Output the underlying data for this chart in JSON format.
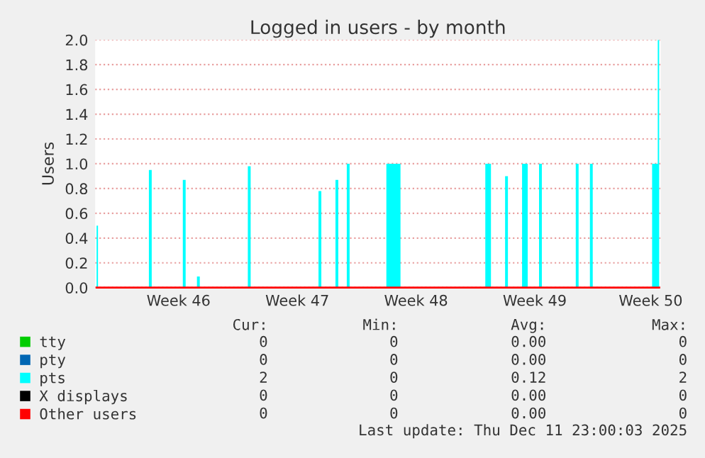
{
  "chart_data": {
    "type": "area",
    "title": "Logged in users - by month",
    "ylabel": "Users",
    "categories": [
      null,
      null,
      null,
      null,
      null,
      null,
      null,
      null,
      null,
      null,
      null,
      null,
      null,
      null,
      null,
      null,
      null,
      null,
      null,
      null,
      null,
      null,
      null,
      null,
      null,
      null,
      null,
      null,
      null,
      "Week 46",
      null,
      null,
      null,
      null,
      null,
      null,
      null,
      null,
      null,
      null,
      null,
      null,
      null,
      null,
      null,
      null,
      null,
      null,
      null,
      null,
      null,
      null,
      null,
      null,
      null,
      null,
      null,
      null,
      null,
      null,
      null,
      null,
      null,
      null,
      null,
      null,
      null,
      null,
      null,
      null,
      null,
      "Week 47",
      null,
      null,
      null,
      null,
      null,
      null,
      null,
      null,
      null,
      null,
      null,
      null,
      null,
      null,
      null,
      null,
      null,
      null,
      null,
      null,
      null,
      null,
      null,
      null,
      null,
      null,
      null,
      null,
      null,
      null,
      null,
      null,
      null,
      null,
      null,
      null,
      null,
      null,
      null,
      null,
      null,
      "Week 48",
      null,
      null,
      null,
      null,
      null,
      null,
      null,
      null,
      null,
      null,
      null,
      null,
      null,
      null,
      null,
      null,
      null,
      null,
      null,
      null,
      null,
      null,
      null,
      null,
      null,
      null,
      null,
      null,
      null,
      null,
      null,
      null,
      null,
      null,
      null,
      null,
      null,
      null,
      null,
      null,
      null,
      "Week 49",
      null,
      null,
      null,
      null,
      null,
      null,
      null,
      null,
      null,
      null,
      null,
      null,
      null,
      null,
      null,
      null,
      null,
      null,
      null,
      null,
      null,
      null,
      null,
      null,
      null,
      null,
      null,
      null,
      null,
      null,
      null,
      null,
      null,
      null,
      null,
      null,
      null,
      null,
      null,
      null,
      "Week 50",
      null,
      null,
      null
    ],
    "ylim": [
      0,
      2.0
    ],
    "yticks": [
      {
        "value": 0,
        "label": "0.0"
      },
      0.2,
      0.4,
      0.6,
      0.8,
      {
        "value": 1,
        "label": "1.0"
      },
      1.2,
      1.4,
      1.6,
      1.8,
      {
        "value": 2,
        "label": "2.0"
      }
    ],
    "grid": "y",
    "legend": "bottom",
    "series": [
      {
        "name": "tty",
        "color": "#00cc00",
        "values": [
          null,
          null,
          null,
          null,
          null,
          null,
          null,
          null,
          null,
          null,
          null,
          null,
          null,
          null,
          null,
          null,
          null,
          null,
          null,
          null,
          null,
          null,
          null,
          null,
          null,
          null,
          null,
          null,
          null,
          null,
          null,
          null,
          null,
          null,
          null,
          null,
          null,
          null,
          null,
          null,
          null,
          null,
          null,
          null,
          null,
          null,
          null,
          null,
          null,
          null,
          null,
          null,
          null,
          null,
          null,
          null,
          null,
          null,
          null,
          null,
          null,
          null,
          null,
          null,
          null,
          null,
          null,
          null,
          null,
          null,
          null,
          null,
          null,
          null,
          null,
          null,
          null,
          null,
          null,
          null,
          null,
          null,
          null,
          null,
          null,
          null,
          null,
          null,
          null,
          null,
          null,
          null,
          null,
          null,
          null,
          null,
          null,
          null,
          null,
          null,
          null,
          null,
          null,
          null,
          null,
          null,
          null,
          null,
          null,
          null,
          null,
          null,
          null,
          null,
          null,
          null,
          null,
          null,
          null,
          null,
          null,
          null,
          null,
          null,
          null,
          null,
          null,
          null,
          null,
          null,
          null,
          null,
          null,
          null,
          null,
          null,
          null,
          null,
          null,
          null,
          null,
          null,
          null,
          null,
          null,
          null,
          null,
          null,
          null,
          null,
          null,
          null,
          null,
          null,
          null,
          null,
          null,
          null,
          null,
          null,
          null,
          null,
          null,
          null,
          null,
          null,
          null,
          null,
          null,
          null,
          null,
          null,
          null,
          null,
          null,
          null,
          null,
          null,
          null,
          null,
          null,
          null,
          null,
          null,
          null,
          null,
          null,
          null,
          null,
          null,
          null,
          null,
          null,
          null,
          null,
          null,
          null,
          null,
          null,
          null
        ]
      },
      {
        "name": "pty",
        "color": "#0066b3",
        "values": [
          null,
          null,
          null,
          null,
          null,
          null,
          null,
          null,
          null,
          null,
          null,
          null,
          null,
          null,
          null,
          null,
          null,
          null,
          null,
          null,
          null,
          null,
          null,
          null,
          null,
          null,
          null,
          null,
          null,
          null,
          null,
          null,
          null,
          null,
          null,
          null,
          null,
          null,
          null,
          null,
          null,
          null,
          null,
          null,
          null,
          null,
          null,
          null,
          null,
          null,
          null,
          null,
          null,
          null,
          null,
          null,
          null,
          null,
          null,
          null,
          null,
          null,
          null,
          null,
          null,
          null,
          null,
          null,
          null,
          null,
          null,
          null,
          null,
          null,
          null,
          null,
          null,
          null,
          null,
          null,
          null,
          null,
          null,
          null,
          null,
          null,
          null,
          null,
          null,
          null,
          null,
          null,
          null,
          null,
          null,
          null,
          null,
          null,
          null,
          null,
          null,
          null,
          null,
          null,
          null,
          null,
          null,
          null,
          null,
          null,
          null,
          null,
          null,
          null,
          null,
          null,
          null,
          null,
          null,
          null,
          null,
          null,
          null,
          null,
          null,
          null,
          null,
          null,
          null,
          null,
          null,
          null,
          null,
          null,
          null,
          null,
          null,
          null,
          null,
          null,
          null,
          null,
          null,
          null,
          null,
          null,
          null,
          null,
          null,
          null,
          null,
          null,
          null,
          null,
          null,
          null,
          null,
          null,
          null,
          null,
          null,
          null,
          null,
          null,
          null,
          null,
          null,
          null,
          null,
          null,
          null,
          null,
          null,
          null,
          null,
          null,
          null,
          null,
          null,
          null,
          null,
          null,
          null,
          null,
          null,
          null,
          null,
          null,
          null,
          null,
          null,
          null,
          null,
          null,
          null,
          null,
          null,
          null,
          null,
          null
        ]
      },
      {
        "name": "pts",
        "color": "#00ffff",
        "values": [
          0.5,
          0,
          0,
          0,
          0,
          0,
          0,
          0,
          0,
          0,
          0,
          0,
          0,
          0,
          0,
          0,
          0,
          0,
          0,
          0.95,
          0,
          0,
          0,
          0,
          0,
          0,
          0,
          0,
          0,
          0,
          0,
          0.87,
          0,
          0,
          0,
          0,
          0.09,
          0,
          0,
          0,
          0,
          0,
          0,
          0,
          0,
          0,
          0,
          0,
          0,
          0,
          0,
          0,
          0,
          0,
          0.98,
          0,
          0,
          0,
          0,
          0,
          0,
          0,
          0,
          0,
          0,
          0,
          0,
          0,
          0,
          0,
          0,
          0,
          0,
          0,
          0,
          0,
          0,
          0,
          0,
          0.78,
          0,
          0,
          0,
          0,
          0,
          0.87,
          0,
          0,
          0,
          1.0,
          0,
          0,
          0,
          0,
          0,
          0,
          0,
          0,
          0,
          0,
          0,
          0,
          0,
          1.0,
          1.0,
          1.0,
          1.0,
          1.0,
          0,
          0,
          0,
          0,
          0,
          0,
          0,
          0,
          0,
          0,
          0,
          0,
          0,
          0,
          0,
          0,
          0,
          0,
          0,
          0,
          0,
          0,
          0,
          0,
          0,
          0,
          0,
          0,
          0,
          0,
          1.0,
          1.0,
          0,
          0,
          0,
          0,
          0,
          0.9,
          0,
          0,
          0,
          0,
          0,
          1.0,
          1.0,
          0,
          0,
          0,
          0,
          1.0,
          0,
          0,
          0,
          0,
          0,
          0,
          0,
          0,
          0,
          0,
          0,
          0,
          1.0,
          0,
          0,
          0,
          0,
          1.0,
          0,
          0,
          0,
          0,
          0,
          0,
          0,
          0,
          0,
          0,
          0,
          0,
          0,
          0,
          0,
          0,
          0,
          0,
          0,
          0,
          0,
          1.0,
          1.0,
          2.0
        ]
      },
      {
        "name": "X displays",
        "color": "#000000",
        "values": [
          null,
          null,
          null,
          null,
          null,
          null,
          null,
          null,
          null,
          null,
          null,
          null,
          null,
          null,
          null,
          null,
          null,
          null,
          null,
          null,
          null,
          null,
          null,
          null,
          null,
          null,
          null,
          null,
          null,
          null,
          null,
          null,
          null,
          null,
          null,
          null,
          null,
          null,
          null,
          null,
          null,
          null,
          null,
          null,
          null,
          null,
          null,
          null,
          null,
          null,
          null,
          null,
          null,
          null,
          null,
          null,
          null,
          null,
          null,
          null,
          null,
          null,
          null,
          null,
          null,
          null,
          null,
          null,
          null,
          null,
          null,
          null,
          null,
          null,
          null,
          null,
          null,
          null,
          null,
          null,
          null,
          null,
          null,
          null,
          null,
          null,
          null,
          null,
          null,
          null,
          null,
          null,
          null,
          null,
          null,
          null,
          null,
          null,
          null,
          null,
          null,
          null,
          null,
          null,
          null,
          null,
          null,
          null,
          null,
          null,
          null,
          null,
          null,
          null,
          null,
          null,
          null,
          null,
          null,
          null,
          null,
          null,
          null,
          null,
          null,
          null,
          null,
          null,
          null,
          null,
          null,
          null,
          null,
          null,
          null,
          null,
          null,
          null,
          null,
          null,
          null,
          null,
          null,
          null,
          null,
          null,
          null,
          null,
          null,
          null,
          null,
          null,
          null,
          null,
          null,
          null,
          null,
          null,
          null,
          null,
          null,
          null,
          null,
          null,
          null,
          null,
          null,
          null,
          null,
          null,
          null,
          null,
          null,
          null,
          null,
          null,
          null,
          null,
          null,
          null,
          null,
          null,
          null,
          null,
          null,
          null,
          null,
          null,
          null,
          null,
          null,
          null,
          null,
          null,
          null,
          null,
          null,
          null,
          null,
          null
        ]
      },
      {
        "name": "Other users",
        "color": "#ff0000",
        "type": "line",
        "values": [
          0,
          0,
          0,
          0,
          0,
          0,
          0,
          0,
          0,
          0,
          0,
          0,
          0,
          0,
          0,
          0,
          0,
          0,
          0,
          0,
          0,
          0,
          0,
          0,
          0,
          0,
          0,
          0,
          0,
          0,
          0,
          0,
          0,
          0,
          0,
          0,
          0,
          0,
          0,
          0,
          0,
          0,
          0,
          0,
          0,
          0,
          0,
          0,
          0,
          0,
          0,
          0,
          0,
          0,
          0,
          0,
          0,
          0,
          0,
          0,
          0,
          0,
          0,
          0,
          0,
          0,
          0,
          0,
          0,
          0,
          0,
          0,
          0,
          0,
          0,
          0,
          0,
          0,
          0,
          0,
          0,
          0,
          0,
          0,
          0,
          0,
          0,
          0,
          0,
          0,
          0,
          0,
          0,
          0,
          0,
          0,
          0,
          0,
          0,
          0,
          0,
          0,
          0,
          0,
          0,
          0,
          0,
          0,
          0,
          0,
          0,
          0,
          0,
          0,
          0,
          0,
          0,
          0,
          0,
          0,
          0,
          0,
          0,
          0,
          0,
          0,
          0,
          0,
          0,
          0,
          0,
          0,
          0,
          0,
          0,
          0,
          0,
          0,
          0,
          0,
          0,
          0,
          0,
          0,
          0,
          0,
          0,
          0,
          0,
          0,
          0,
          0,
          0,
          0,
          0,
          0,
          0,
          0,
          0,
          0,
          0,
          0,
          0,
          0,
          0,
          0,
          0,
          0,
          0,
          0,
          0,
          0,
          0,
          0,
          0,
          0,
          0,
          0,
          0,
          0,
          0,
          0,
          0,
          0,
          0,
          0,
          0,
          0,
          0,
          0,
          0,
          0,
          0,
          0,
          0,
          0,
          0,
          0,
          0,
          0
        ]
      }
    ],
    "annotations": [
      "Cur:",
      "Min:",
      "Avg:",
      "Max:",
      "0",
      "0",
      "0.00",
      "0",
      "0",
      "0",
      "0.00",
      "0",
      "2",
      "0",
      "0.12",
      "2",
      "0",
      "0",
      "0.00",
      "0",
      "0",
      "0",
      "0.00",
      "0",
      "Last update: Thu Dec 11 23:00:03 2025"
    ]
  }
}
